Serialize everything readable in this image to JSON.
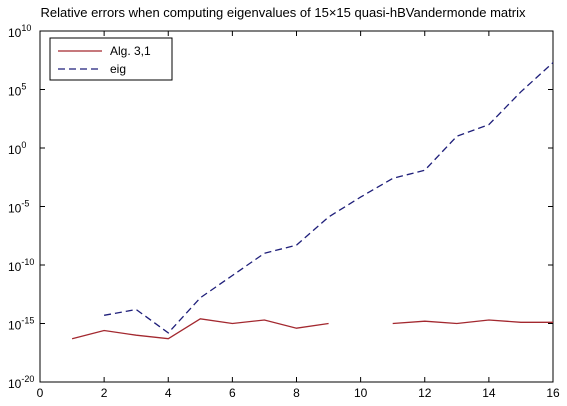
{
  "chart_data": {
    "type": "line",
    "title": "Relative errors when computing eigenvalues of 15×15 quasi-hBVandermonde matrix",
    "xlabel": "",
    "ylabel": "",
    "xlim": [
      0,
      16
    ],
    "ylim": [
      -20,
      10
    ],
    "yscale": "log10",
    "x_ticks": [
      0,
      2,
      4,
      6,
      8,
      10,
      12,
      14,
      16
    ],
    "y_ticks": [
      {
        "exp": -20,
        "mantissa": "10",
        "power": "-20"
      },
      {
        "exp": -15,
        "mantissa": "10",
        "power": "-15"
      },
      {
        "exp": -10,
        "mantissa": "10",
        "power": "-10"
      },
      {
        "exp": -5,
        "mantissa": "10",
        "power": "-5"
      },
      {
        "exp": 0,
        "mantissa": "10",
        "power": "0"
      },
      {
        "exp": 5,
        "mantissa": "10",
        "power": "5"
      },
      {
        "exp": 10,
        "mantissa": "10",
        "power": "10"
      }
    ],
    "grid": false,
    "legend_position": "top-left",
    "series": [
      {
        "name": "Alg. 3,1",
        "color": "#a3282f",
        "style": "solid",
        "points": [
          [
            1,
            -16.3
          ],
          [
            2,
            -15.6
          ],
          [
            3,
            -16.0
          ],
          [
            4,
            -16.3
          ],
          [
            5,
            -14.6
          ],
          [
            6,
            -15.0
          ],
          [
            7,
            -14.7
          ],
          [
            8,
            -15.4
          ],
          [
            9,
            -15.0
          ],
          [
            11,
            -15.0
          ],
          [
            12,
            -14.8
          ],
          [
            13,
            -15.0
          ],
          [
            14,
            -14.7
          ],
          [
            15,
            -14.9
          ],
          [
            16,
            -14.9
          ]
        ]
      },
      {
        "name": "eig",
        "color": "#1f1f7a",
        "style": "dashed",
        "points": [
          [
            2,
            -14.3
          ],
          [
            3,
            -13.8
          ],
          [
            4,
            -15.8
          ],
          [
            5,
            -12.8
          ],
          [
            6,
            -10.9
          ],
          [
            7,
            -9.0
          ],
          [
            8,
            -8.3
          ],
          [
            9,
            -5.9
          ],
          [
            10,
            -4.2
          ],
          [
            11,
            -2.6
          ],
          [
            12,
            -1.9
          ],
          [
            13,
            1.0
          ],
          [
            14,
            2.0
          ],
          [
            15,
            4.8
          ],
          [
            16,
            7.3
          ]
        ]
      }
    ]
  }
}
